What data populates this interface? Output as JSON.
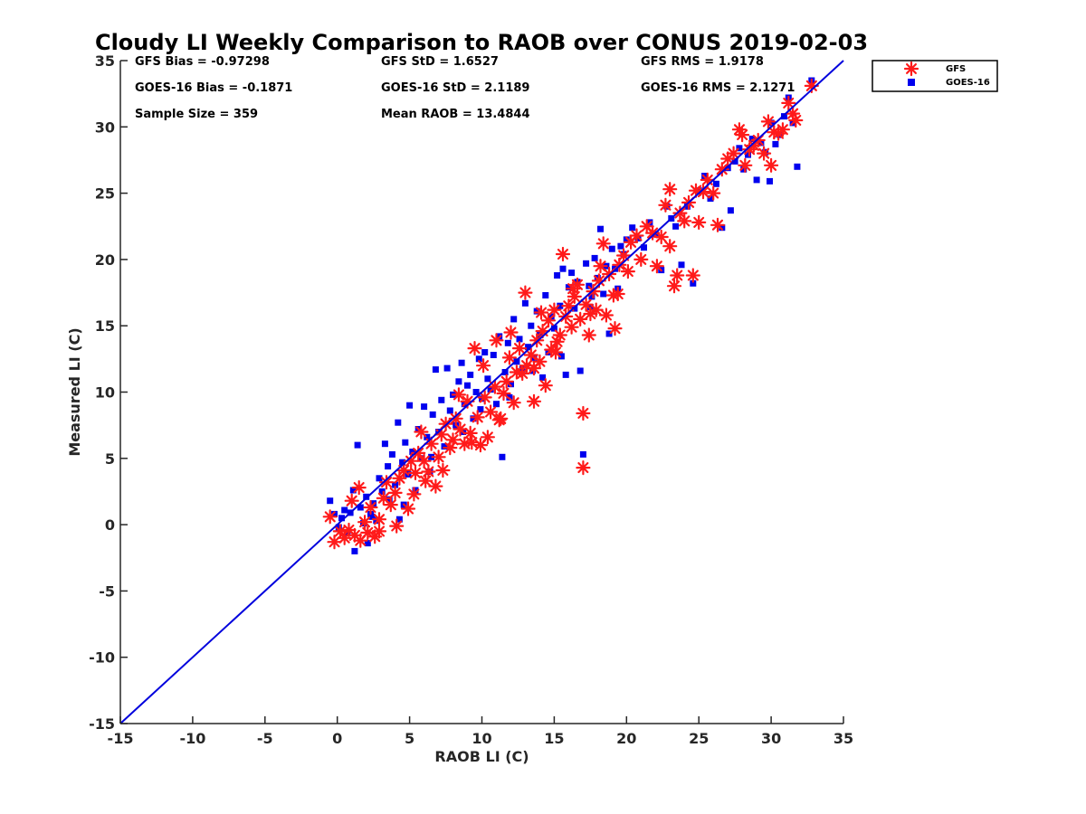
{
  "chart_data": {
    "type": "scatter",
    "title": "Cloudy LI Weekly Comparison to RAOB over CONUS 2019-02-03",
    "xlabel": "RAOB LI (C)",
    "ylabel": "Measured LI (C)",
    "xlim": [
      -15,
      35
    ],
    "ylim": [
      -15,
      35
    ],
    "xticks": [
      -15,
      -10,
      -5,
      0,
      5,
      10,
      15,
      20,
      25,
      30,
      35
    ],
    "yticks": [
      -15,
      -10,
      -5,
      0,
      5,
      10,
      15,
      20,
      25,
      30,
      35
    ],
    "grid": false,
    "legend_position": "outside-top-right",
    "reference_line": {
      "label": "1:1",
      "from": [
        -15,
        -15
      ],
      "to": [
        35,
        35
      ],
      "color": "#0000dd"
    },
    "stats": [
      [
        "GFS Bias = -0.97298",
        "GFS StD = 1.6527",
        "GFS RMS = 1.9178"
      ],
      [
        "GOES-16 Bias = -0.1871",
        "GOES-16 StD = 2.1189",
        "GOES-16 RMS = 2.1271"
      ],
      [
        "Sample Size = 359",
        "Mean RAOB = 13.4844",
        ""
      ]
    ],
    "series": [
      {
        "name": "GFS",
        "marker": "asterisk",
        "color": "#ff1a1a",
        "points": [
          [
            -0.5,
            0.6
          ],
          [
            -0.2,
            -1.3
          ],
          [
            0.2,
            -0.5
          ],
          [
            0.5,
            -1.0
          ],
          [
            0.8,
            -0.4
          ],
          [
            1.0,
            1.8
          ],
          [
            1.2,
            -0.8
          ],
          [
            1.5,
            2.8
          ],
          [
            1.6,
            -1.2
          ],
          [
            1.9,
            0.2
          ],
          [
            2.1,
            -0.6
          ],
          [
            2.3,
            1.3
          ],
          [
            2.6,
            -0.9
          ],
          [
            2.9,
            0.4
          ],
          [
            3.2,
            2.0
          ],
          [
            3.4,
            3.2
          ],
          [
            3.7,
            1.5
          ],
          [
            4.0,
            2.4
          ],
          [
            4.1,
            -0.1
          ],
          [
            4.3,
            3.5
          ],
          [
            4.6,
            4.1
          ],
          [
            4.9,
            1.2
          ],
          [
            5.1,
            4.8
          ],
          [
            5.3,
            2.3
          ],
          [
            5.6,
            5.4
          ],
          [
            5.8,
            7.0
          ],
          [
            6.1,
            3.3
          ],
          [
            6.3,
            4.0
          ],
          [
            6.5,
            6.1
          ],
          [
            6.8,
            2.9
          ],
          [
            7.0,
            5.1
          ],
          [
            7.2,
            6.8
          ],
          [
            7.5,
            7.6
          ],
          [
            7.8,
            5.8
          ],
          [
            8.0,
            6.4
          ],
          [
            8.2,
            8.0
          ],
          [
            8.5,
            7.2
          ],
          [
            8.8,
            6.1
          ],
          [
            9.0,
            9.3
          ],
          [
            9.2,
            6.9
          ],
          [
            9.5,
            13.3
          ],
          [
            9.7,
            8.1
          ],
          [
            9.9,
            6.0
          ],
          [
            10.2,
            9.6
          ],
          [
            10.4,
            6.6
          ],
          [
            10.6,
            8.5
          ],
          [
            10.9,
            10.4
          ],
          [
            11.0,
            13.9
          ],
          [
            11.2,
            7.9
          ],
          [
            11.5,
            9.9
          ],
          [
            11.7,
            10.8
          ],
          [
            11.9,
            12.6
          ],
          [
            12.2,
            9.2
          ],
          [
            12.4,
            11.5
          ],
          [
            12.6,
            13.3
          ],
          [
            12.8,
            11.4
          ],
          [
            13.0,
            17.5
          ],
          [
            13.1,
            12.0
          ],
          [
            13.4,
            12.8
          ],
          [
            13.6,
            9.3
          ],
          [
            13.8,
            13.9
          ],
          [
            14.0,
            12.3
          ],
          [
            14.2,
            14.6
          ],
          [
            14.4,
            10.5
          ],
          [
            14.6,
            15.4
          ],
          [
            14.8,
            13.2
          ],
          [
            15.0,
            16.2
          ],
          [
            15.2,
            13.8
          ],
          [
            15.4,
            14.3
          ],
          [
            15.6,
            20.4
          ],
          [
            15.8,
            15.7
          ],
          [
            16.0,
            16.5
          ],
          [
            16.2,
            14.9
          ],
          [
            16.4,
            17.2
          ],
          [
            16.6,
            18.1
          ],
          [
            16.8,
            15.5
          ],
          [
            17.0,
            8.4
          ],
          [
            17.0,
            4.3
          ],
          [
            17.2,
            16.6
          ],
          [
            17.4,
            14.3
          ],
          [
            17.7,
            17.6
          ],
          [
            17.9,
            16.2
          ],
          [
            18.1,
            18.4
          ],
          [
            18.4,
            21.2
          ],
          [
            18.6,
            15.8
          ],
          [
            18.8,
            18.9
          ],
          [
            19.1,
            17.3
          ],
          [
            19.2,
            14.8
          ],
          [
            19.5,
            19.6
          ],
          [
            19.8,
            20.3
          ],
          [
            20.1,
            19.1
          ],
          [
            20.3,
            21.3
          ],
          [
            20.7,
            21.8
          ],
          [
            21.0,
            20.0
          ],
          [
            21.4,
            22.5
          ],
          [
            21.8,
            22.0
          ],
          [
            22.1,
            19.5
          ],
          [
            22.4,
            21.7
          ],
          [
            22.7,
            24.1
          ],
          [
            23.0,
            21.0
          ],
          [
            23.0,
            25.3
          ],
          [
            23.3,
            18.0
          ],
          [
            23.5,
            18.8
          ],
          [
            23.7,
            23.5
          ],
          [
            24.0,
            22.9
          ],
          [
            24.3,
            24.3
          ],
          [
            24.6,
            18.8
          ],
          [
            24.8,
            25.2
          ],
          [
            25.0,
            22.8
          ],
          [
            25.3,
            25.1
          ],
          [
            25.6,
            26.0
          ],
          [
            26.0,
            25.0
          ],
          [
            26.3,
            22.6
          ],
          [
            26.6,
            26.8
          ],
          [
            27.0,
            27.6
          ],
          [
            27.4,
            28.0
          ],
          [
            27.8,
            29.8
          ],
          [
            28.0,
            29.4
          ],
          [
            28.2,
            27.1
          ],
          [
            28.5,
            28.3
          ],
          [
            28.8,
            28.6
          ],
          [
            29.1,
            29.0
          ],
          [
            29.5,
            28.0
          ],
          [
            29.8,
            30.4
          ],
          [
            30.0,
            27.1
          ],
          [
            30.2,
            29.6
          ],
          [
            30.5,
            29.5
          ],
          [
            30.8,
            29.8
          ],
          [
            31.2,
            31.8
          ],
          [
            31.5,
            31.0
          ],
          [
            31.7,
            30.5
          ],
          [
            32.8,
            33.1
          ],
          [
            2.9,
            -0.5
          ],
          [
            6.0,
            4.8
          ],
          [
            8.4,
            9.8
          ],
          [
            10.1,
            12.0
          ],
          [
            12.0,
            14.5
          ],
          [
            14.1,
            16.0
          ],
          [
            16.3,
            17.8
          ],
          [
            18.2,
            19.5
          ],
          [
            11.3,
            8.0
          ],
          [
            9.3,
            6.2
          ],
          [
            7.3,
            4.1
          ],
          [
            5.4,
            3.9
          ],
          [
            13.6,
            11.8
          ],
          [
            15.1,
            13.0
          ],
          [
            17.5,
            15.9
          ],
          [
            19.4,
            17.4
          ]
        ]
      },
      {
        "name": "GOES-16",
        "marker": "square",
        "color": "#0000ee",
        "points": [
          [
            -0.5,
            1.8
          ],
          [
            -0.2,
            0.8
          ],
          [
            0.1,
            -0.2
          ],
          [
            0.3,
            0.5
          ],
          [
            0.5,
            1.1
          ],
          [
            0.7,
            -0.6
          ],
          [
            0.9,
            0.9
          ],
          [
            1.1,
            2.6
          ],
          [
            1.2,
            -2.0
          ],
          [
            1.4,
            6.0
          ],
          [
            1.6,
            1.3
          ],
          [
            1.8,
            0.1
          ],
          [
            2.0,
            2.1
          ],
          [
            2.1,
            -1.4
          ],
          [
            2.3,
            0.8
          ],
          [
            2.5,
            1.6
          ],
          [
            2.7,
            0.3
          ],
          [
            2.9,
            3.5
          ],
          [
            3.1,
            2.5
          ],
          [
            3.3,
            6.1
          ],
          [
            3.5,
            4.4
          ],
          [
            3.6,
            1.9
          ],
          [
            3.8,
            5.3
          ],
          [
            4.0,
            3.0
          ],
          [
            4.2,
            7.7
          ],
          [
            4.3,
            0.4
          ],
          [
            4.5,
            4.7
          ],
          [
            4.7,
            6.2
          ],
          [
            4.9,
            3.8
          ],
          [
            5.0,
            9.0
          ],
          [
            5.2,
            5.5
          ],
          [
            5.4,
            2.6
          ],
          [
            5.6,
            7.2
          ],
          [
            5.8,
            5.0
          ],
          [
            6.0,
            8.9
          ],
          [
            6.2,
            6.6
          ],
          [
            6.4,
            4.0
          ],
          [
            6.6,
            8.3
          ],
          [
            6.8,
            11.7
          ],
          [
            7.0,
            7.0
          ],
          [
            7.2,
            9.4
          ],
          [
            7.4,
            5.9
          ],
          [
            7.6,
            11.8
          ],
          [
            7.8,
            8.6
          ],
          [
            8.0,
            9.8
          ],
          [
            8.2,
            7.5
          ],
          [
            8.4,
            10.8
          ],
          [
            8.6,
            12.2
          ],
          [
            8.8,
            9.1
          ],
          [
            9.0,
            10.5
          ],
          [
            9.2,
            11.3
          ],
          [
            9.4,
            8.0
          ],
          [
            9.6,
            10.0
          ],
          [
            9.8,
            12.5
          ],
          [
            10.0,
            9.5
          ],
          [
            10.2,
            13.0
          ],
          [
            10.4,
            11.0
          ],
          [
            10.6,
            10.2
          ],
          [
            10.8,
            12.8
          ],
          [
            11.0,
            9.1
          ],
          [
            11.2,
            14.2
          ],
          [
            11.4,
            5.1
          ],
          [
            11.6,
            11.5
          ],
          [
            11.8,
            13.7
          ],
          [
            12.0,
            10.6
          ],
          [
            12.2,
            15.5
          ],
          [
            12.4,
            12.3
          ],
          [
            12.6,
            14.0
          ],
          [
            12.8,
            11.7
          ],
          [
            13.0,
            16.7
          ],
          [
            13.2,
            13.4
          ],
          [
            13.4,
            15.0
          ],
          [
            13.6,
            12.6
          ],
          [
            13.8,
            16.1
          ],
          [
            14.0,
            14.3
          ],
          [
            14.2,
            11.1
          ],
          [
            14.4,
            17.3
          ],
          [
            14.6,
            13.0
          ],
          [
            14.8,
            15.7
          ],
          [
            15.0,
            14.8
          ],
          [
            15.2,
            18.8
          ],
          [
            15.4,
            16.5
          ],
          [
            15.6,
            19.3
          ],
          [
            15.8,
            11.3
          ],
          [
            16.0,
            17.9
          ],
          [
            16.2,
            19.0
          ],
          [
            16.4,
            16.3
          ],
          [
            16.6,
            18.3
          ],
          [
            16.8,
            11.6
          ],
          [
            17.0,
            5.3
          ],
          [
            17.2,
            19.7
          ],
          [
            17.4,
            18.0
          ],
          [
            17.6,
            17.2
          ],
          [
            17.8,
            20.1
          ],
          [
            18.0,
            18.6
          ],
          [
            18.2,
            22.3
          ],
          [
            18.4,
            17.4
          ],
          [
            18.6,
            19.5
          ],
          [
            18.8,
            14.4
          ],
          [
            19.0,
            20.8
          ],
          [
            19.2,
            19.3
          ],
          [
            19.4,
            17.8
          ],
          [
            19.6,
            21.0
          ],
          [
            19.8,
            20.4
          ],
          [
            20.0,
            21.5
          ],
          [
            20.4,
            22.4
          ],
          [
            20.8,
            21.6
          ],
          [
            21.2,
            20.9
          ],
          [
            21.6,
            22.8
          ],
          [
            22.0,
            21.9
          ],
          [
            22.4,
            19.2
          ],
          [
            22.8,
            24.0
          ],
          [
            23.1,
            23.1
          ],
          [
            23.4,
            22.5
          ],
          [
            23.8,
            19.6
          ],
          [
            24.2,
            24.0
          ],
          [
            24.6,
            18.2
          ],
          [
            25.0,
            25.2
          ],
          [
            25.4,
            26.3
          ],
          [
            25.8,
            24.6
          ],
          [
            26.2,
            25.7
          ],
          [
            26.6,
            22.4
          ],
          [
            27.0,
            26.9
          ],
          [
            27.2,
            23.7
          ],
          [
            27.5,
            27.4
          ],
          [
            27.8,
            28.4
          ],
          [
            28.1,
            26.8
          ],
          [
            28.4,
            27.9
          ],
          [
            28.7,
            29.1
          ],
          [
            29.0,
            26.0
          ],
          [
            29.3,
            28.8
          ],
          [
            29.6,
            28.1
          ],
          [
            29.9,
            25.9
          ],
          [
            30.0,
            30.3
          ],
          [
            30.3,
            28.7
          ],
          [
            30.6,
            29.4
          ],
          [
            30.9,
            30.8
          ],
          [
            31.2,
            32.2
          ],
          [
            31.5,
            30.3
          ],
          [
            31.8,
            27.0
          ],
          [
            32.8,
            33.5
          ],
          [
            2.4,
            0.6
          ],
          [
            4.6,
            1.5
          ],
          [
            6.5,
            5.1
          ],
          [
            8.7,
            7.0
          ],
          [
            9.9,
            8.7
          ],
          [
            11.9,
            9.6
          ],
          [
            13.5,
            11.6
          ],
          [
            15.5,
            12.7
          ],
          [
            17.5,
            16.4
          ]
        ]
      }
    ]
  }
}
